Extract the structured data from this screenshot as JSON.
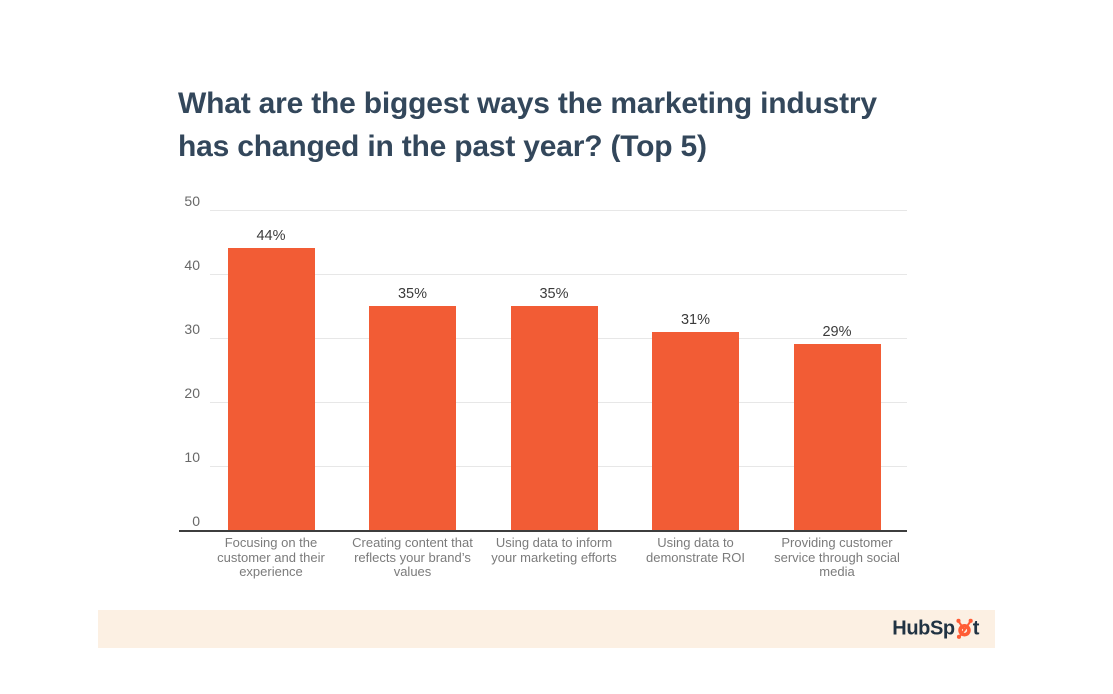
{
  "title": {
    "lines": [
      "What are the biggest ways the marketing industry",
      "has changed in the past year? (Top 5)"
    ],
    "color": "#33475b"
  },
  "chart_data": {
    "type": "bar",
    "title": "What are the biggest ways the marketing industry has changed in the past year? (Top 5)",
    "categories": [
      "Focusing on the customer and their experience",
      "Creating content that reflects your brand’s values",
      "Using data to inform your marketing efforts",
      "Using data to demonstrate ROI",
      "Providing customer service through social media"
    ],
    "values": [
      44,
      35,
      35,
      31,
      29
    ],
    "value_labels": [
      "44%",
      "35%",
      "35%",
      "31%",
      "29%"
    ],
    "xlabel": "",
    "ylabel": "",
    "ylim": [
      0,
      50
    ],
    "yticks": [
      0,
      10,
      20,
      30,
      40,
      50
    ],
    "grid": true,
    "legend": false,
    "bar_color": "#f25c35",
    "gridline_color": "#e7e7e7",
    "axis_color": "#3d3d3d"
  },
  "footer": {
    "logo_prefix": "HubSp",
    "logo_suffix": "t",
    "logo_color": "#213343",
    "sprocket_color": "#ff5c35",
    "banner_color": "#fcf0e3"
  }
}
